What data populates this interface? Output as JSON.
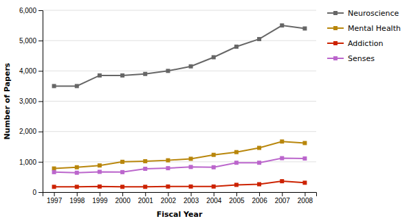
{
  "chart_data": {
    "type": "line",
    "xlabel": "Fiscal Year",
    "ylabel": "Number of Papers",
    "x": [
      1997,
      1998,
      1999,
      2000,
      2001,
      2002,
      2003,
      2004,
      2005,
      2006,
      2007,
      2008
    ],
    "series": [
      {
        "name": "Neuroscience",
        "color": "#666666",
        "marker": "square",
        "values": [
          3500,
          3500,
          3850,
          3850,
          3900,
          4000,
          4150,
          4450,
          4800,
          5050,
          5500,
          5400
        ]
      },
      {
        "name": "Mental Health",
        "color": "#b8860b",
        "marker": "square",
        "values": [
          780,
          820,
          880,
          1000,
          1020,
          1050,
          1100,
          1230,
          1320,
          1460,
          1670,
          1620
        ]
      },
      {
        "name": "Addiction",
        "color": "#cc2200",
        "marker": "square",
        "values": [
          175,
          175,
          185,
          175,
          175,
          185,
          185,
          185,
          240,
          260,
          360,
          310
        ]
      },
      {
        "name": "Senses",
        "color": "#bb66cc",
        "marker": "square",
        "values": [
          660,
          640,
          670,
          660,
          770,
          790,
          830,
          820,
          970,
          970,
          1120,
          1110
        ]
      }
    ],
    "xlim": [
      1996.5,
      2008.5
    ],
    "xticks": [
      1997,
      1998,
      1999,
      2000,
      2001,
      2002,
      2003,
      2004,
      2005,
      2006,
      2007,
      2008
    ],
    "ylim": [
      0,
      6000
    ],
    "yticks": [
      0,
      {
        "value": 1000,
        "label": "1,000"
      },
      {
        "value": 2000,
        "label": "2,000"
      },
      {
        "value": 3000,
        "label": "3,000"
      },
      {
        "value": 4000,
        "label": "4,000"
      },
      {
        "value": 5000,
        "label": "5,000"
      },
      {
        "value": 6000,
        "label": "6,000"
      }
    ],
    "grid": true,
    "legend": "right"
  }
}
